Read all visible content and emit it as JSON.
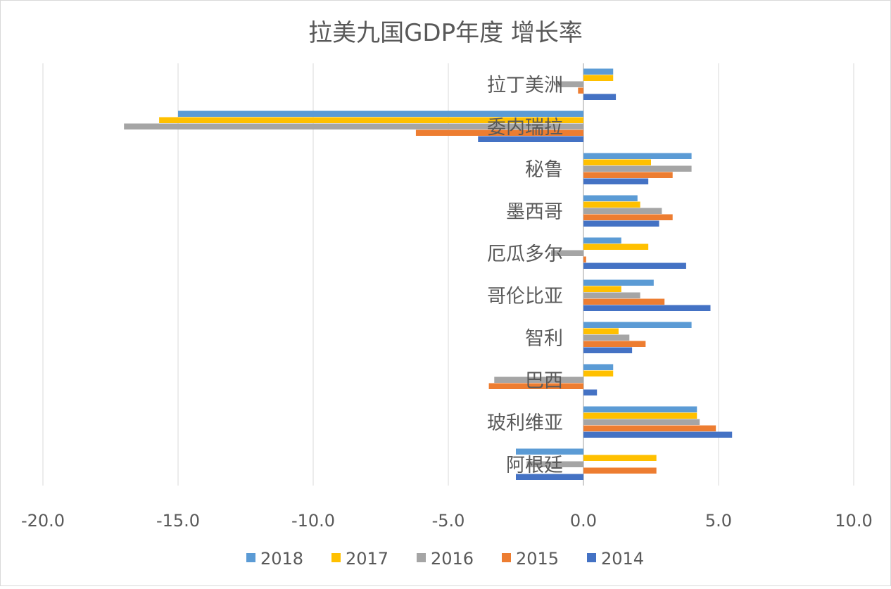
{
  "chart_data": {
    "type": "bar",
    "orientation": "horizontal",
    "title": "拉美九国GDP年度 增长率",
    "categories": [
      "拉丁美洲",
      "委内瑞拉",
      "秘鲁",
      "墨西哥",
      "厄瓜多尔",
      "哥伦比亚",
      "智利",
      "巴西",
      "玻利维亚",
      "阿根廷"
    ],
    "series": [
      {
        "name": "2018",
        "color": "#5B9BD5",
        "values": [
          1.1,
          -15.0,
          4.0,
          2.0,
          1.4,
          2.6,
          4.0,
          1.1,
          4.2,
          -2.5
        ]
      },
      {
        "name": "2017",
        "color": "#FFC000",
        "values": [
          1.1,
          -15.7,
          2.5,
          2.1,
          2.4,
          1.4,
          1.3,
          1.1,
          4.2,
          2.7
        ]
      },
      {
        "name": "2016",
        "color": "#A5A5A5",
        "values": [
          -1.0,
          -17.0,
          4.0,
          2.9,
          -1.2,
          2.1,
          1.7,
          -3.3,
          4.3,
          -2.1
        ]
      },
      {
        "name": "2015",
        "color": "#ED7D31",
        "values": [
          -0.2,
          -6.2,
          3.3,
          3.3,
          0.1,
          3.0,
          2.3,
          -3.5,
          4.9,
          2.7
        ]
      },
      {
        "name": "2014",
        "color": "#4472C4",
        "values": [
          1.2,
          -3.9,
          2.4,
          2.8,
          3.8,
          4.7,
          1.8,
          0.5,
          5.5,
          -2.5
        ]
      }
    ],
    "xlim": [
      -20,
      10
    ],
    "xticks": [
      "-20.0",
      "-15.0",
      "-10.0",
      "-5.0",
      "0.0",
      "5.0",
      "10.0"
    ],
    "grid": true,
    "legend": "bottom"
  }
}
